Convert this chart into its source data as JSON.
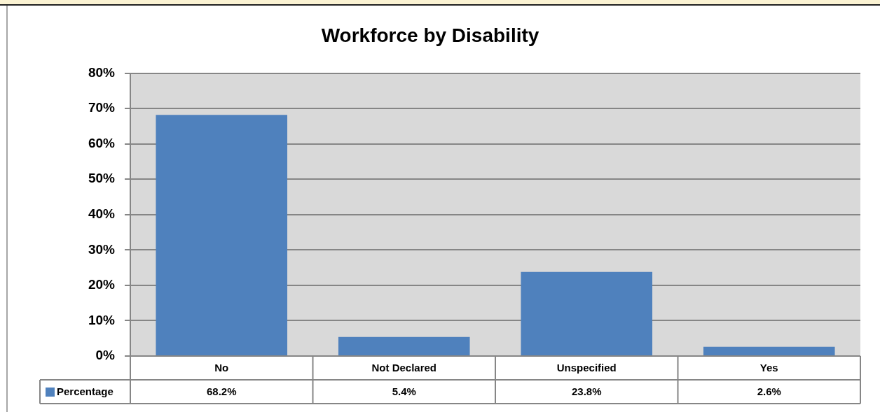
{
  "chart_data": {
    "type": "bar",
    "title": "Workforce by Disability",
    "categories": [
      "No",
      "Not Declared",
      "Unspecified",
      "Yes"
    ],
    "series": [
      {
        "name": "Percentage",
        "color": "#4f81bd",
        "values": [
          68.2,
          5.4,
          23.8,
          2.6
        ],
        "value_labels": [
          "68.2%",
          "5.4%",
          "23.8%",
          "2.6%"
        ]
      }
    ],
    "ylim": [
      0,
      80
    ],
    "yticks": [
      {
        "value": 0,
        "label": "0%"
      },
      {
        "value": 10,
        "label": "10%"
      },
      {
        "value": 20,
        "label": "20%"
      },
      {
        "value": 30,
        "label": "30%"
      },
      {
        "value": 40,
        "label": "40%"
      },
      {
        "value": 50,
        "label": "50%"
      },
      {
        "value": 60,
        "label": "60%"
      },
      {
        "value": 70,
        "label": "70%"
      },
      {
        "value": 80,
        "label": "80%"
      }
    ],
    "grid": "y",
    "legend": "bottom"
  }
}
